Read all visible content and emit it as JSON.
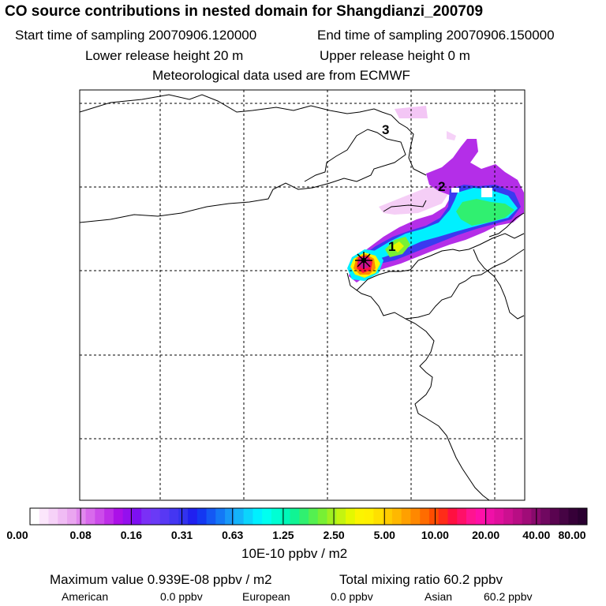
{
  "header": {
    "title": "CO  source contributions in nested domain for Shangdianzi_200709",
    "start_label": "Start time of sampling 20070906.120000",
    "end_label": "End time of sampling 20070906.150000",
    "lower_release": "Lower release height   20 m",
    "upper_release": "Upper release height    0 m",
    "met_data": "Meteorological data used are from ECMWF"
  },
  "map": {
    "markers": [
      "1",
      "2",
      "3"
    ],
    "colors": {
      "frame": "#000000",
      "grid": "#000000",
      "coast": "#000000"
    }
  },
  "colorbar": {
    "labels": [
      "0.00",
      "0.08",
      "0.16",
      "0.31",
      "0.63",
      "1.25",
      "2.50",
      "5.00",
      "10.00",
      "20.00",
      "40.00",
      "80.00"
    ],
    "colors": [
      "#ffffff",
      "#fbe6fb",
      "#f6d2f8",
      "#f0bcf4",
      "#eaa6f0",
      "#e188ee",
      "#d86aec",
      "#cc4cea",
      "#be2ee8",
      "#ac10e8",
      "#9410ee",
      "#7d10f2",
      "#7a30f6",
      "#6a3af6",
      "#5838f4",
      "#4436f2",
      "#3232ee",
      "#2020f0",
      "#1438f2",
      "#1458f4",
      "#1478f6",
      "#1898f8",
      "#14b4fa",
      "#0cd4fc",
      "#00f0ff",
      "#00fff0",
      "#00ffd4",
      "#00f8b8",
      "#10f494",
      "#30f070",
      "#54f050",
      "#78f034",
      "#a0f020",
      "#c4f410",
      "#e4f800",
      "#fcf400",
      "#fff000",
      "#ffe000",
      "#ffcc00",
      "#ffb800",
      "#ffa000",
      "#ff8800",
      "#ff6c00",
      "#ff4c00",
      "#ff2c18",
      "#ff1040",
      "#ff1068",
      "#ff1490",
      "#ff10a8",
      "#f010a8",
      "#e0109c",
      "#cc1090",
      "#b80e84",
      "#a00c78",
      "#880a6c",
      "#700860",
      "#5a0450",
      "#460444",
      "#360038",
      "#2a0030"
    ],
    "unit": "10E-10 ppbv / m2"
  },
  "stats": {
    "max_value": "Maximum value  0.939E-08 ppbv / m2",
    "total_mixing": "Total mixing ratio      60.2 ppbv",
    "american_label": "American",
    "american_value": "0.0 ppbv",
    "european_label": "European",
    "european_value": "0.0 ppbv",
    "asian_label": "Asian",
    "asian_value": "60.2 ppbv"
  }
}
